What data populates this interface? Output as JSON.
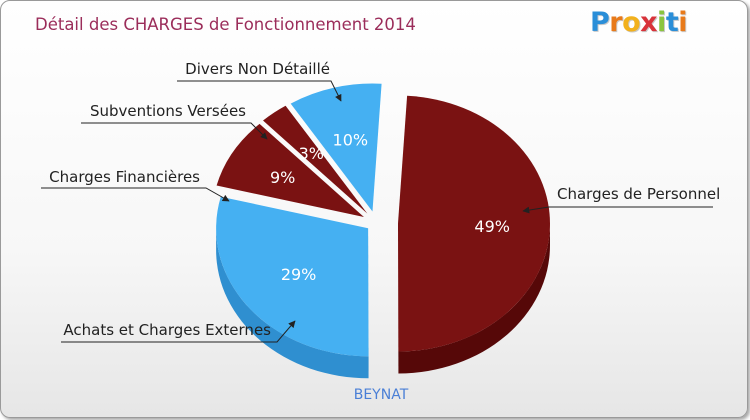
{
  "title": "Détail des CHARGES de Fonctionnement 2014",
  "logo": {
    "text": "Proxiti",
    "letters": [
      "P",
      "r",
      "o",
      "x",
      "i",
      "t",
      "i"
    ],
    "colors": [
      "#2a8ed8",
      "#e87a1a",
      "#f2b11c",
      "#d8333a",
      "#8ac43f",
      "#2a8ed8",
      "#e87a1a"
    ]
  },
  "colors": {
    "title": "#9b2d5a",
    "dark_red_top": "#7a1212",
    "dark_red_side": "#560808",
    "blue_top": "#45b0f2",
    "blue_side": "#2f8fd0",
    "caption": "#4a7fd6"
  },
  "chart_data": {
    "type": "pie",
    "title": "Détail des CHARGES de Fonctionnement 2014",
    "caption": "BEYNAT",
    "slices": [
      {
        "label": "Charges de Personnel",
        "value": 49,
        "pct_label": "49%",
        "color": "#7a1212",
        "side": "#560808"
      },
      {
        "label": "Achats et Charges Externes",
        "value": 29,
        "pct_label": "29%",
        "color": "#45b0f2",
        "side": "#2f8fd0"
      },
      {
        "label": "Charges Financières",
        "value": 9,
        "pct_label": "9%",
        "color": "#7a1212",
        "side": "#560808"
      },
      {
        "label": "Subventions Versées",
        "value": 3,
        "pct_label": "3%",
        "color": "#7a1212",
        "side": "#560808"
      },
      {
        "label": "Divers Non Détaillé",
        "value": 10,
        "pct_label": "10%",
        "color": "#45b0f2",
        "side": "#2f8fd0"
      }
    ]
  }
}
